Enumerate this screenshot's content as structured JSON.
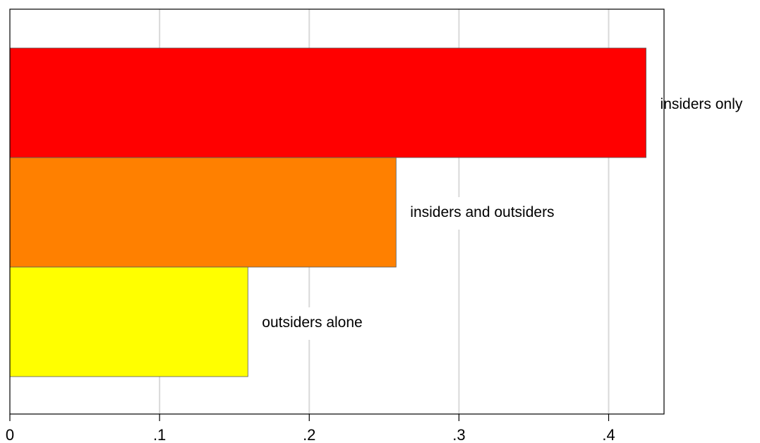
{
  "chart_data": {
    "type": "bar",
    "orientation": "horizontal",
    "categories": [
      "insiders only",
      "insiders and outsiders",
      "outsiders alone"
    ],
    "values": [
      0.425,
      0.258,
      0.159
    ],
    "colors": [
      "#ff0000",
      "#ff8000",
      "#ffff00"
    ],
    "xlim": [
      0,
      0.437
    ],
    "xticks": [
      0,
      0.1,
      0.2,
      0.3,
      0.4
    ],
    "xtick_labels": [
      "0",
      ".1",
      ".2",
      ".3",
      ".4"
    ],
    "grid": "vertical",
    "title": "",
    "xlabel": "",
    "ylabel": ""
  }
}
